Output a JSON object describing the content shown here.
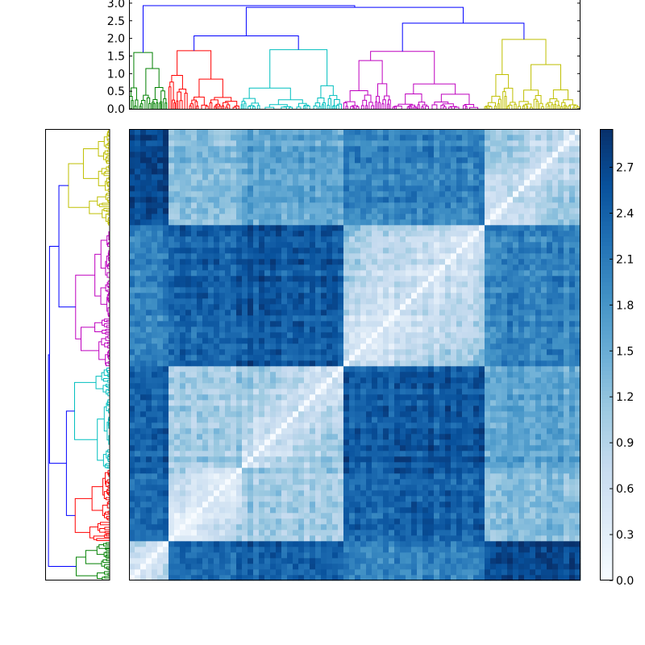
{
  "chart_data": {
    "type": "heatmap",
    "title": "",
    "clusters": [
      {
        "name": "green",
        "color": "#008000",
        "size": 48,
        "height": 1.6
      },
      {
        "name": "red",
        "color": "#ff0000",
        "size": 90,
        "height": 1.65
      },
      {
        "name": "cyan",
        "color": "#00bfbf",
        "size": 127,
        "height": 1.68
      },
      {
        "name": "magenta",
        "color": "#bf00bf",
        "size": 175,
        "height": 1.63
      },
      {
        "name": "yellow",
        "color": "#bfbf00",
        "size": 120,
        "height": 1.97
      }
    ],
    "link_color": "#0000ff",
    "top_merges": [
      {
        "left": "red",
        "right": "cyan",
        "height": 2.07
      },
      {
        "left": "magenta",
        "right": "yellow",
        "height": 2.43
      },
      {
        "left": "red+cyan",
        "right": "magenta+yellow",
        "height": 2.88
      },
      {
        "left": "green",
        "right": "red+cyan+magenta+yellow",
        "height": 2.93
      }
    ],
    "block_means": [
      [
        0.3,
        2.3,
        2.4,
        2.0,
        2.7
      ],
      [
        2.3,
        0.3,
        1.1,
        2.4,
        1.3
      ],
      [
        2.4,
        1.1,
        0.6,
        2.5,
        1.6
      ],
      [
        2.0,
        2.4,
        2.5,
        0.5,
        2.0
      ],
      [
        2.7,
        1.3,
        1.6,
        2.0,
        0.6
      ]
    ],
    "dendrogram_yaxis": {
      "ticks": [
        "0.0",
        "0.5",
        "1.0",
        "1.5",
        "2.0",
        "2.5",
        "3.0"
      ],
      "range": [
        0,
        3.1
      ]
    },
    "colorbar": {
      "ticks": [
        "0.0",
        "0.3",
        "0.6",
        "0.9",
        "1.2",
        "1.5",
        "1.8",
        "2.1",
        "2.4",
        "2.7"
      ],
      "range": [
        0,
        2.95
      ],
      "colormap": "Blues"
    }
  }
}
